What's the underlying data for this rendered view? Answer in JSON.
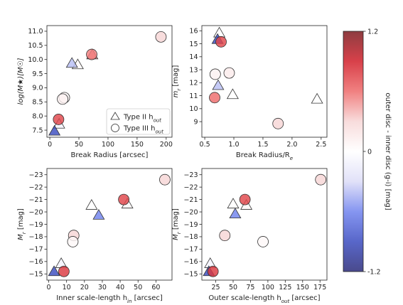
{
  "chart_data": [
    {
      "type": "scatter",
      "xlabel": "Break Radius [arcsec]",
      "ylabel": "log(M★)[M☉]",
      "xlim": [
        -5,
        210
      ],
      "ylim": [
        7.25,
        11.2
      ],
      "xticks": [
        0,
        50,
        100,
        150,
        200
      ],
      "yticks": [
        7.5,
        8.0,
        8.5,
        9.0,
        9.5,
        10.0,
        10.5,
        11.0
      ],
      "xtick_labels": [
        "0",
        "50",
        "100",
        "150",
        "200"
      ],
      "ytick_labels": [
        "7.5",
        "8.0",
        "8.5",
        "9.0",
        "9.5",
        "10.0",
        "10.5",
        "11.0"
      ],
      "legend": {
        "position": "lower-right",
        "entries": [
          "Type II h",
          "Type III h"
        ],
        "entry_subscript": "out"
      },
      "series": [
        {
          "name": "Type II h_out",
          "marker": "triangle",
          "points": [
            {
              "x": 73,
              "y": 10.15,
              "c": 0.5
            },
            {
              "x": 48,
              "y": 9.8,
              "c": 0.05
            },
            {
              "x": 38,
              "y": 9.85,
              "c": -0.4
            },
            {
              "x": 16,
              "y": 7.7,
              "c": -0.1
            },
            {
              "x": 8,
              "y": 7.45,
              "c": -0.9
            }
          ]
        },
        {
          "name": "Type III h_out",
          "marker": "circle",
          "points": [
            {
              "x": 191,
              "y": 10.8,
              "c": 0.3
            },
            {
              "x": 72,
              "y": 10.18,
              "c": 0.55
            },
            {
              "x": 25,
              "y": 8.65,
              "c": 0.05
            },
            {
              "x": 22,
              "y": 8.6,
              "c": 0.1
            },
            {
              "x": 15,
              "y": 7.88,
              "c": 0.75
            }
          ]
        }
      ]
    },
    {
      "type": "scatter",
      "xlabel": "Break Radius/R",
      "xlabel_subscript": "e",
      "ylabel": "m",
      "ylabel_subscript": "r",
      "ylabel_unit": " [mag]",
      "xlim": [
        0.45,
        2.6
      ],
      "ylim": [
        7.8,
        16.4
      ],
      "xticks": [
        0.5,
        1.0,
        1.5,
        2.0,
        2.5
      ],
      "yticks": [
        9,
        10,
        11,
        12,
        13,
        14,
        15,
        16
      ],
      "xtick_labels": [
        "0.5",
        "1.0",
        "1.5",
        "2.0",
        "2.5"
      ],
      "ytick_labels": [
        "9",
        "10",
        "11",
        "12",
        "13",
        "14",
        "15",
        "16"
      ],
      "series": [
        {
          "name": "Type II h_out",
          "marker": "triangle",
          "points": [
            {
              "x": 0.75,
              "y": 15.8,
              "c": 0.0
            },
            {
              "x": 0.72,
              "y": 15.3,
              "c": -0.9
            },
            {
              "x": 0.73,
              "y": 11.75,
              "c": -0.4
            },
            {
              "x": 0.98,
              "y": 11.05,
              "c": 0.0
            },
            {
              "x": 2.43,
              "y": 10.7,
              "c": 0.0
            }
          ]
        },
        {
          "name": "Type III h_out",
          "marker": "circle",
          "points": [
            {
              "x": 0.78,
              "y": 15.15,
              "c": 0.75
            },
            {
              "x": 0.68,
              "y": 12.65,
              "c": 0.1
            },
            {
              "x": 0.92,
              "y": 12.75,
              "c": 0.15
            },
            {
              "x": 0.67,
              "y": 10.85,
              "c": 0.6
            },
            {
              "x": 1.76,
              "y": 8.85,
              "c": 0.3
            }
          ]
        }
      ]
    },
    {
      "type": "scatter",
      "xlabel": "Inner scale-length h",
      "xlabel_subscript": "in",
      "xlabel_unit": " [arcsec]",
      "ylabel": "M",
      "ylabel_subscript": "r",
      "ylabel_unit": " [mag]",
      "xlim": [
        -1,
        69
      ],
      "ylim": [
        -14.5,
        -23.5
      ],
      "xticks": [
        0,
        10,
        20,
        30,
        40,
        50,
        60
      ],
      "yticks": [
        -15,
        -16,
        -17,
        -18,
        -19,
        -20,
        -21,
        -22,
        -23
      ],
      "xtick_labels": [
        "0",
        "10",
        "20",
        "30",
        "40",
        "50",
        "60"
      ],
      "ytick_labels": [
        "−15",
        "−16",
        "−17",
        "−18",
        "−19",
        "−20",
        "−21",
        "−22",
        "−23"
      ],
      "series": [
        {
          "name": "Type II h_out",
          "marker": "triangle",
          "points": [
            {
              "x": 24,
              "y": -20.5,
              "c": 0.0
            },
            {
              "x": 44,
              "y": -20.6,
              "c": 0.05
            },
            {
              "x": 28,
              "y": -19.7,
              "c": -0.6
            },
            {
              "x": 7,
              "y": -15.8,
              "c": -0.1
            },
            {
              "x": 3,
              "y": -15.15,
              "c": -0.9
            }
          ]
        },
        {
          "name": "Type III h_out",
          "marker": "circle",
          "points": [
            {
              "x": 65,
              "y": -22.6,
              "c": 0.3
            },
            {
              "x": 42,
              "y": -21.0,
              "c": 0.75
            },
            {
              "x": 14,
              "y": -18.1,
              "c": 0.3
            },
            {
              "x": 13.5,
              "y": -17.6,
              "c": 0.05
            },
            {
              "x": 8.5,
              "y": -15.2,
              "c": 0.8
            }
          ]
        }
      ]
    },
    {
      "type": "scatter",
      "xlabel": "Outer scale-length h",
      "xlabel_subscript": "out",
      "xlabel_unit": " [arcsec]",
      "ylabel": "M",
      "ylabel_subscript": "r",
      "ylabel_unit": " [mag]",
      "xlim": [
        5,
        185
      ],
      "ylim": [
        -14.5,
        -23.5
      ],
      "xticks": [
        25,
        50,
        75,
        100,
        125,
        150,
        175
      ],
      "yticks": [
        -15,
        -16,
        -17,
        -18,
        -19,
        -20,
        -21,
        -22,
        -23
      ],
      "xtick_labels": [
        "25",
        "50",
        "75",
        "100",
        "125",
        "150",
        "175"
      ],
      "ytick_labels": [
        "−15",
        "−16",
        "−17",
        "−18",
        "−19",
        "−20",
        "−21",
        "−22",
        "−23"
      ],
      "series": [
        {
          "name": "Type II h_out",
          "marker": "triangle",
          "points": [
            {
              "x": 50,
              "y": -20.6,
              "c": 0.0
            },
            {
              "x": 69,
              "y": -20.5,
              "c": 0.05
            },
            {
              "x": 53,
              "y": -19.8,
              "c": -0.6
            },
            {
              "x": 17,
              "y": -15.8,
              "c": -0.1
            },
            {
              "x": 15,
              "y": -15.15,
              "c": -0.9
            }
          ]
        },
        {
          "name": "Type III h_out",
          "marker": "circle",
          "points": [
            {
              "x": 176,
              "y": -22.6,
              "c": 0.3
            },
            {
              "x": 67,
              "y": -21.0,
              "c": 0.75
            },
            {
              "x": 38,
              "y": -18.1,
              "c": 0.3
            },
            {
              "x": 93,
              "y": -17.6,
              "c": 0.05
            },
            {
              "x": 21,
              "y": -15.2,
              "c": 0.8
            }
          ]
        }
      ]
    }
  ],
  "colorbar": {
    "label": "outer disc - inner disc (g-i) [mag]",
    "min": -1.2,
    "max": 1.2,
    "tick_labels": [
      "1.2",
      "0",
      "-1.2"
    ],
    "colormap": [
      "#2a2a78",
      "#3b4cc0",
      "#7083ee",
      "#dcdcf7",
      "#ffffff",
      "#f7d6d6",
      "#ee6b6b",
      "#d11f2a",
      "#7a1a1f"
    ]
  }
}
